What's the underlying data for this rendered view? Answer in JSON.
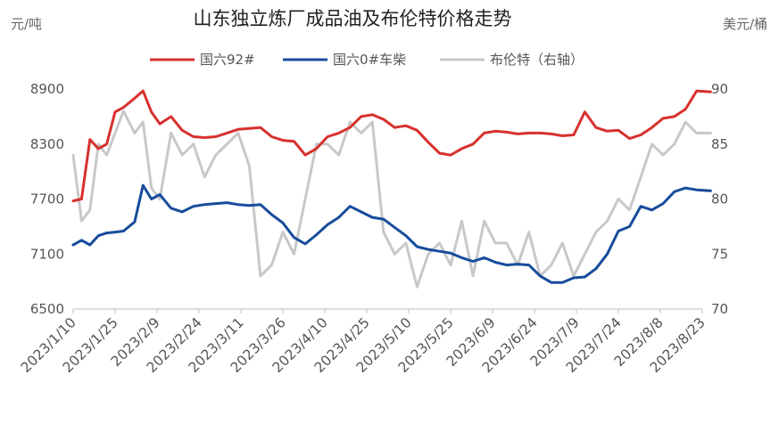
{
  "chart_data": {
    "type": "line",
    "title": "山东独立炼厂成品油及布伦特价格走势",
    "left_unit": "元/吨",
    "right_unit": "美元/桶",
    "colors": {
      "gasoline": "#d7312d",
      "diesel": "#174c9c",
      "brent": "#c8c8c8"
    },
    "legend": [
      {
        "name": "国六92#",
        "color": "#d7312d"
      },
      {
        "name": "国六0#车柴",
        "color": "#174c9c"
      },
      {
        "name": "布伦特（右轴）",
        "color": "#c8c8c8"
      }
    ],
    "x_ticks": [
      "2023/1/10",
      "2023/1/25",
      "2023/2/9",
      "2023/2/24",
      "2023/3/11",
      "2023/3/26",
      "2023/4/10",
      "2023/4/25",
      "2023/5/10",
      "2023/5/25",
      "2023/6/9",
      "2023/6/24",
      "2023/7/9",
      "2023/7/24",
      "2023/8/8",
      "2023/8/23"
    ],
    "y_left": {
      "min": 6500,
      "max": 8900,
      "ticks": [
        6500,
        7100,
        7700,
        8300,
        8900
      ]
    },
    "y_right": {
      "min": 70,
      "max": 90,
      "ticks": [
        70,
        75,
        80,
        85,
        90
      ]
    },
    "series": [
      {
        "name": "国六92#",
        "axis": "left",
        "x": [
          "2023-01-10",
          "2023-01-13",
          "2023-01-16",
          "2023-01-19",
          "2023-01-22",
          "2023-01-25",
          "2023-01-28",
          "2023-02-01",
          "2023-02-04",
          "2023-02-07",
          "2023-02-10",
          "2023-02-14",
          "2023-02-18",
          "2023-02-22",
          "2023-02-26",
          "2023-03-02",
          "2023-03-06",
          "2023-03-10",
          "2023-03-14",
          "2023-03-18",
          "2023-03-22",
          "2023-03-26",
          "2023-03-30",
          "2023-04-03",
          "2023-04-07",
          "2023-04-11",
          "2023-04-15",
          "2023-04-19",
          "2023-04-23",
          "2023-04-27",
          "2023-05-01",
          "2023-05-05",
          "2023-05-09",
          "2023-05-13",
          "2023-05-17",
          "2023-05-21",
          "2023-05-25",
          "2023-05-29",
          "2023-06-02",
          "2023-06-06",
          "2023-06-10",
          "2023-06-14",
          "2023-06-18",
          "2023-06-22",
          "2023-06-26",
          "2023-06-30",
          "2023-07-04",
          "2023-07-08",
          "2023-07-12",
          "2023-07-16",
          "2023-07-20",
          "2023-07-24",
          "2023-07-28",
          "2023-08-01",
          "2023-08-05",
          "2023-08-09",
          "2023-08-13",
          "2023-08-17",
          "2023-08-21",
          "2023-08-26"
        ],
        "values": [
          7680,
          7700,
          8350,
          8250,
          8300,
          8650,
          8700,
          8800,
          8880,
          8650,
          8520,
          8600,
          8450,
          8380,
          8370,
          8380,
          8420,
          8460,
          8470,
          8480,
          8380,
          8340,
          8330,
          8180,
          8250,
          8380,
          8420,
          8480,
          8600,
          8620,
          8570,
          8480,
          8500,
          8450,
          8320,
          8200,
          8180,
          8250,
          8300,
          8420,
          8440,
          8430,
          8410,
          8420,
          8420,
          8410,
          8390,
          8400,
          8650,
          8480,
          8440,
          8450,
          8360,
          8400,
          8480,
          8580,
          8600,
          8680,
          8880,
          8870
        ]
      },
      {
        "name": "国六0#车柴",
        "axis": "left",
        "x": [
          "2023-01-10",
          "2023-01-13",
          "2023-01-16",
          "2023-01-19",
          "2023-01-22",
          "2023-01-25",
          "2023-01-28",
          "2023-02-01",
          "2023-02-04",
          "2023-02-07",
          "2023-02-10",
          "2023-02-14",
          "2023-02-18",
          "2023-02-22",
          "2023-02-26",
          "2023-03-02",
          "2023-03-06",
          "2023-03-10",
          "2023-03-14",
          "2023-03-18",
          "2023-03-22",
          "2023-03-26",
          "2023-03-30",
          "2023-04-03",
          "2023-04-07",
          "2023-04-11",
          "2023-04-15",
          "2023-04-19",
          "2023-04-23",
          "2023-04-27",
          "2023-05-01",
          "2023-05-05",
          "2023-05-09",
          "2023-05-13",
          "2023-05-17",
          "2023-05-21",
          "2023-05-25",
          "2023-05-29",
          "2023-06-02",
          "2023-06-06",
          "2023-06-10",
          "2023-06-14",
          "2023-06-18",
          "2023-06-22",
          "2023-06-26",
          "2023-06-30",
          "2023-07-04",
          "2023-07-08",
          "2023-07-12",
          "2023-07-16",
          "2023-07-20",
          "2023-07-24",
          "2023-07-28",
          "2023-08-01",
          "2023-08-05",
          "2023-08-09",
          "2023-08-13",
          "2023-08-17",
          "2023-08-21",
          "2023-08-26"
        ],
        "values": [
          7200,
          7250,
          7200,
          7300,
          7330,
          7340,
          7350,
          7450,
          7850,
          7700,
          7750,
          7600,
          7560,
          7620,
          7640,
          7650,
          7660,
          7640,
          7630,
          7640,
          7530,
          7440,
          7280,
          7210,
          7310,
          7420,
          7500,
          7620,
          7560,
          7500,
          7480,
          7390,
          7300,
          7180,
          7150,
          7130,
          7110,
          7060,
          7020,
          7060,
          7010,
          6980,
          6990,
          6980,
          6860,
          6790,
          6790,
          6840,
          6850,
          6940,
          7100,
          7350,
          7400,
          7620,
          7580,
          7650,
          7780,
          7820,
          7800,
          7790
        ]
      },
      {
        "name": "布伦特（右轴）",
        "axis": "right",
        "x": [
          "2023-01-10",
          "2023-01-13",
          "2023-01-16",
          "2023-01-19",
          "2023-01-22",
          "2023-01-25",
          "2023-01-28",
          "2023-02-01",
          "2023-02-04",
          "2023-02-07",
          "2023-02-10",
          "2023-02-14",
          "2023-02-18",
          "2023-02-22",
          "2023-02-26",
          "2023-03-02",
          "2023-03-06",
          "2023-03-10",
          "2023-03-14",
          "2023-03-18",
          "2023-03-22",
          "2023-03-26",
          "2023-03-30",
          "2023-04-03",
          "2023-04-07",
          "2023-04-11",
          "2023-04-15",
          "2023-04-19",
          "2023-04-23",
          "2023-04-27",
          "2023-05-01",
          "2023-05-05",
          "2023-05-09",
          "2023-05-13",
          "2023-05-17",
          "2023-05-21",
          "2023-05-25",
          "2023-05-29",
          "2023-06-02",
          "2023-06-06",
          "2023-06-10",
          "2023-06-14",
          "2023-06-18",
          "2023-06-22",
          "2023-06-26",
          "2023-06-30",
          "2023-07-04",
          "2023-07-08",
          "2023-07-12",
          "2023-07-16",
          "2023-07-20",
          "2023-07-24",
          "2023-07-28",
          "2023-08-01",
          "2023-08-05",
          "2023-08-09",
          "2023-08-13",
          "2023-08-17",
          "2023-08-21",
          "2023-08-26"
        ],
        "values": [
          84,
          78,
          79,
          85,
          84,
          86,
          88,
          86,
          87,
          81,
          80,
          86,
          84,
          85,
          82,
          84,
          85,
          86,
          83,
          73,
          74,
          77,
          75,
          80,
          85,
          85,
          84,
          87,
          86,
          87,
          77,
          75,
          76,
          72,
          75,
          76,
          74,
          78,
          73,
          78,
          76,
          76,
          74,
          77,
          73,
          74,
          76,
          73,
          75,
          77,
          78,
          80,
          79,
          82,
          85,
          84,
          85,
          87,
          86,
          86
        ]
      }
    ]
  }
}
